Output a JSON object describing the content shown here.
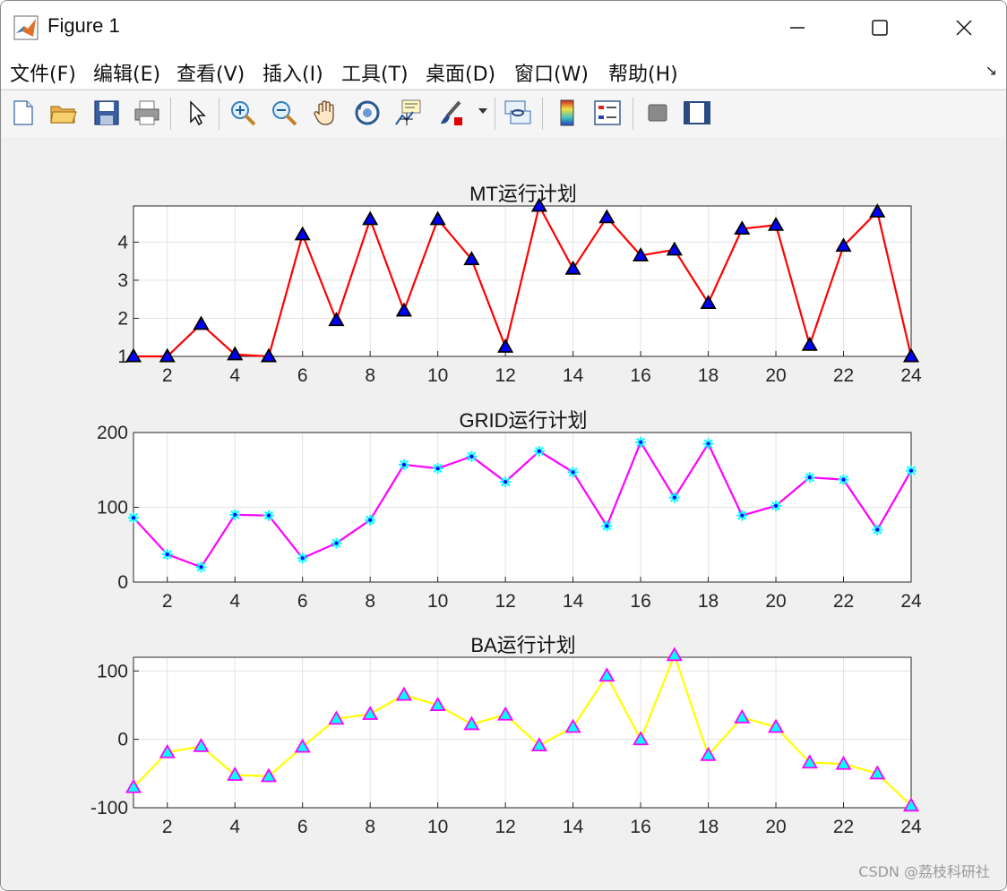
{
  "window": {
    "title": "Figure 1",
    "menus": [
      "文件(F)",
      "编辑(E)",
      "查看(V)",
      "插入(I)",
      "工具(T)",
      "桌面(D)",
      "窗口(W)",
      "帮助(H)"
    ],
    "toolbar_icons": [
      "new-file-icon",
      "open-folder-icon",
      "save-icon",
      "print-icon",
      "pointer-icon",
      "zoom-in-icon",
      "zoom-out-icon",
      "pan-hand-icon",
      "rotate-3d-icon",
      "data-cursor-icon",
      "brush-icon",
      "link-plot-icon",
      "colorbar-icon",
      "legend-icon",
      "hide-plot-tools-icon",
      "show-plot-tools-icon"
    ]
  },
  "watermark": "CSDN @荔枝科研社",
  "chart_data": [
    {
      "type": "line",
      "title": "MT运行计划",
      "x": [
        1,
        2,
        3,
        4,
        5,
        6,
        7,
        8,
        9,
        10,
        11,
        12,
        13,
        14,
        15,
        16,
        17,
        18,
        19,
        20,
        21,
        22,
        23,
        24
      ],
      "series": [
        {
          "values": [
            1,
            1,
            1.85,
            1.05,
            1,
            4.2,
            1.95,
            4.6,
            2.2,
            4.6,
            3.55,
            1.25,
            4.95,
            3.3,
            4.65,
            3.65,
            3.8,
            2.4,
            4.35,
            4.45,
            1.3,
            3.9,
            4.8,
            1
          ],
          "color": "#ff0000",
          "marker": "triangle",
          "marker_face": "#0000ff",
          "marker_edge": "#000000"
        }
      ],
      "xlim": [
        1,
        24
      ],
      "ylim": [
        1,
        4.95
      ],
      "xticks": [
        2,
        4,
        6,
        8,
        10,
        12,
        14,
        16,
        18,
        20,
        22,
        24
      ],
      "yticks": [
        1,
        2,
        3,
        4
      ],
      "grid": true
    },
    {
      "type": "line",
      "title": "GRID运行计划",
      "x": [
        1,
        2,
        3,
        4,
        5,
        6,
        7,
        8,
        9,
        10,
        11,
        12,
        13,
        14,
        15,
        16,
        17,
        18,
        19,
        20,
        21,
        22,
        23,
        24
      ],
      "series": [
        {
          "values": [
            86,
            37,
            20,
            90,
            89,
            32,
            52,
            83,
            157,
            152,
            168,
            134,
            175,
            147,
            75,
            187,
            113,
            185,
            89,
            102,
            140,
            137,
            70,
            149
          ],
          "color": "#ff00ff",
          "marker": "asterisk",
          "marker_face": "#0000ff",
          "marker_edge": "#00ffff"
        }
      ],
      "xlim": [
        1,
        24
      ],
      "ylim": [
        0,
        200
      ],
      "xticks": [
        2,
        4,
        6,
        8,
        10,
        12,
        14,
        16,
        18,
        20,
        22,
        24
      ],
      "yticks": [
        0,
        100,
        200
      ],
      "grid": true
    },
    {
      "type": "line",
      "title": "BA运行计划",
      "x": [
        1,
        2,
        3,
        4,
        5,
        6,
        7,
        8,
        9,
        10,
        11,
        12,
        13,
        14,
        15,
        16,
        17,
        18,
        19,
        20,
        21,
        22,
        23,
        24
      ],
      "series": [
        {
          "values": [
            -70,
            -19,
            -10,
            -52,
            -54,
            -11,
            30,
            37,
            65,
            50,
            22,
            36,
            -9,
            18,
            93,
            0,
            123,
            -23,
            32,
            18,
            -34,
            -36,
            -50,
            -97
          ],
          "color": "#ffff00",
          "marker": "triangle",
          "marker_face": "#00ffff",
          "marker_edge": "#ff00ff"
        }
      ],
      "xlim": [
        1,
        24
      ],
      "ylim": [
        -100,
        120
      ],
      "xticks": [
        2,
        4,
        6,
        8,
        10,
        12,
        14,
        16,
        18,
        20,
        22,
        24
      ],
      "yticks": [
        -100,
        0,
        100
      ],
      "grid": true
    }
  ]
}
